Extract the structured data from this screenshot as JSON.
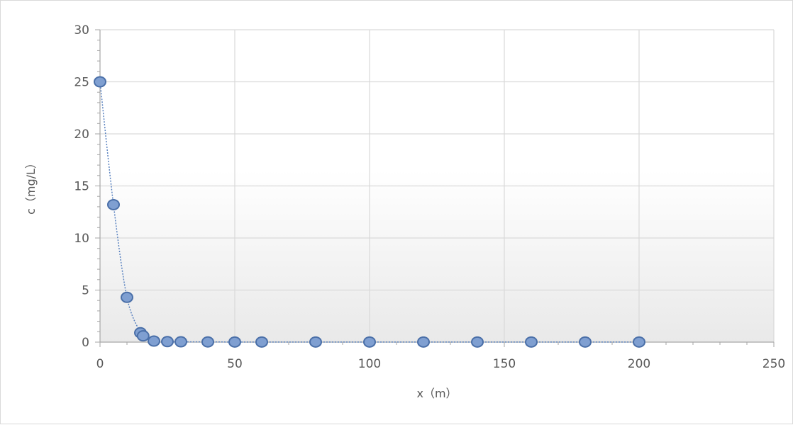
{
  "chart_data": {
    "type": "scatter",
    "title": "",
    "xlabel": "x（m）",
    "ylabel": "c（mg/L）",
    "xlim": [
      0,
      250
    ],
    "ylim": [
      0,
      30
    ],
    "x_ticks": [
      0,
      50,
      100,
      150,
      200,
      250
    ],
    "y_ticks": [
      0,
      5,
      10,
      15,
      20,
      25,
      30
    ],
    "grid": true,
    "legend": "none",
    "line_style": "dotted-smooth",
    "colors": {
      "marker_fill": "#7f9fd1",
      "marker_edge": "#4a6fa8",
      "line": "#5b83c0",
      "grid": "#d9d9d9",
      "plot_bg_top": "#ffffff",
      "plot_bg_bottom": "#e9e9e9"
    },
    "series": [
      {
        "x": [
          0,
          5,
          10,
          15,
          16,
          20,
          25,
          30,
          40,
          50,
          60,
          80,
          100,
          120,
          140,
          160,
          180,
          200
        ],
        "y": [
          25,
          13.2,
          4.3,
          0.9,
          0.6,
          0.1,
          0.05,
          0.03,
          0.02,
          0.01,
          0.01,
          0.01,
          0.01,
          0.01,
          0.01,
          0.01,
          0.01,
          0.01
        ]
      }
    ]
  }
}
